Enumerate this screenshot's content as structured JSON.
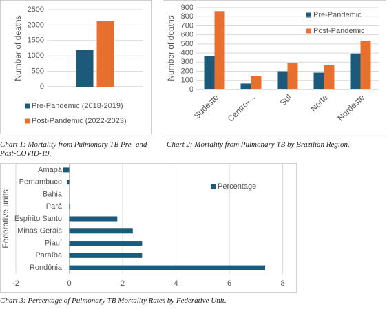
{
  "chart_data": [
    {
      "type": "bar",
      "caption": "Chart 1: Mortality from Pulmonary TB Pre- and Post-COVID-19.",
      "y_label": "Number of deaths",
      "categories": [
        null
      ],
      "series": [
        {
          "name": "Pre-Pandemic (2018-2019)",
          "color": "#1b5a7a",
          "values": [
            1200
          ]
        },
        {
          "name": "Post-Pandemic (2022-2023)",
          "color": "#e8702f",
          "values": [
            2130
          ]
        }
      ],
      "ylim": [
        0,
        2500
      ],
      "yticks": [
        0,
        500,
        1000,
        1500,
        2000,
        2500
      ],
      "grid": true,
      "legend": "bottom"
    },
    {
      "type": "bar",
      "caption": "Chart 2: Mortality from Pulmonary TB by Brazilian Region.",
      "y_label": "Number of deaths",
      "categories": [
        "Sudeste",
        "Centro-...",
        "Sul",
        "Norte",
        "Nordeste"
      ],
      "series": [
        {
          "name": "Pre-Pandemic",
          "color": "#1b5a7a",
          "values": [
            365,
            65,
            200,
            185,
            395
          ]
        },
        {
          "name": "Post-Pandemic",
          "color": "#e8702f",
          "values": [
            860,
            150,
            290,
            265,
            535
          ]
        }
      ],
      "ylim": [
        0,
        900
      ],
      "yticks": [
        0,
        100,
        200,
        300,
        400,
        500,
        600,
        700,
        800,
        900
      ],
      "grid": true,
      "legend": "right"
    },
    {
      "type": "bar",
      "orientation": "horizontal",
      "caption": "Chart 3: Percentage of Pulmonary TB Mortality Rates by Federative Unit.",
      "y_label": "Federative units",
      "categories": [
        "Amapá",
        "Pernambuco",
        "Bahia",
        "Pará",
        "Espírito Santo",
        "Minas Gerais",
        "Piauí",
        "Paraíba",
        "Rondônia"
      ],
      "series": [
        {
          "name": "Percentage",
          "color": "#1b5a7a",
          "values": [
            -0.23,
            -0.08,
            0,
            0.03,
            1.8,
            2.38,
            2.73,
            2.73,
            7.34
          ]
        }
      ],
      "xlim": [
        -2,
        8.5
      ],
      "xticks": [
        -2,
        0,
        2,
        4,
        6,
        8
      ],
      "grid": true,
      "legend": "right"
    }
  ]
}
